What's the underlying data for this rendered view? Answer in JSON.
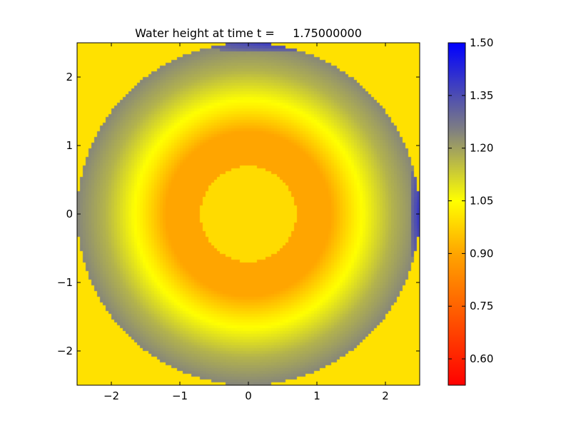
{
  "chart_data": {
    "type": "heatmap",
    "title": "Water height at time t =     1.75000000",
    "xlabel": "",
    "ylabel": "",
    "xlim": [
      -2.5,
      2.5
    ],
    "ylim": [
      -2.5,
      2.5
    ],
    "x_ticks": [
      -2,
      -1,
      0,
      1,
      2
    ],
    "y_ticks": [
      -2,
      -1,
      0,
      1,
      2
    ],
    "x_tick_labels": [
      "−2",
      "−1",
      "0",
      "1",
      "2"
    ],
    "y_tick_labels": [
      "−2",
      "−1",
      "0",
      "1",
      "2"
    ],
    "grid": false,
    "colorbar": {
      "vmin": 0.525,
      "vmax": 1.5,
      "ticks": [
        0.6,
        0.75,
        0.9,
        1.05,
        1.2,
        1.35,
        1.5
      ],
      "tick_labels": [
        "0.60",
        "0.75",
        "0.90",
        "1.05",
        "1.20",
        "1.35",
        "1.50"
      ],
      "colors": [
        {
          "value": 0.525,
          "color": "#ff0000"
        },
        {
          "value": 0.9,
          "color": "#ffa500"
        },
        {
          "value": 1.05,
          "color": "#ffff00"
        },
        {
          "value": 1.25,
          "color": "#808080"
        },
        {
          "value": 1.5,
          "color": "#0000ff"
        }
      ]
    },
    "field": {
      "background_value": 1.0,
      "inner_disk": {
        "radius": 0.7,
        "value": 0.99
      },
      "ring_profile": [
        {
          "r": 0.7,
          "value": 0.9
        },
        {
          "r": 1.2,
          "value": 0.9
        },
        {
          "r": 1.55,
          "value": 1.02
        },
        {
          "r": 1.7,
          "value": 1.06
        },
        {
          "r": 2.1,
          "value": 1.17
        },
        {
          "r": 2.5,
          "value": 1.24
        }
      ],
      "ring_outer_radius": 2.5,
      "edge_reflections": [
        {
          "edge": "top",
          "center": [
            0.5,
            2.5
          ],
          "value": 1.4
        },
        {
          "edge": "right",
          "center": [
            2.5,
            0.0
          ],
          "value": 1.4
        }
      ]
    }
  }
}
